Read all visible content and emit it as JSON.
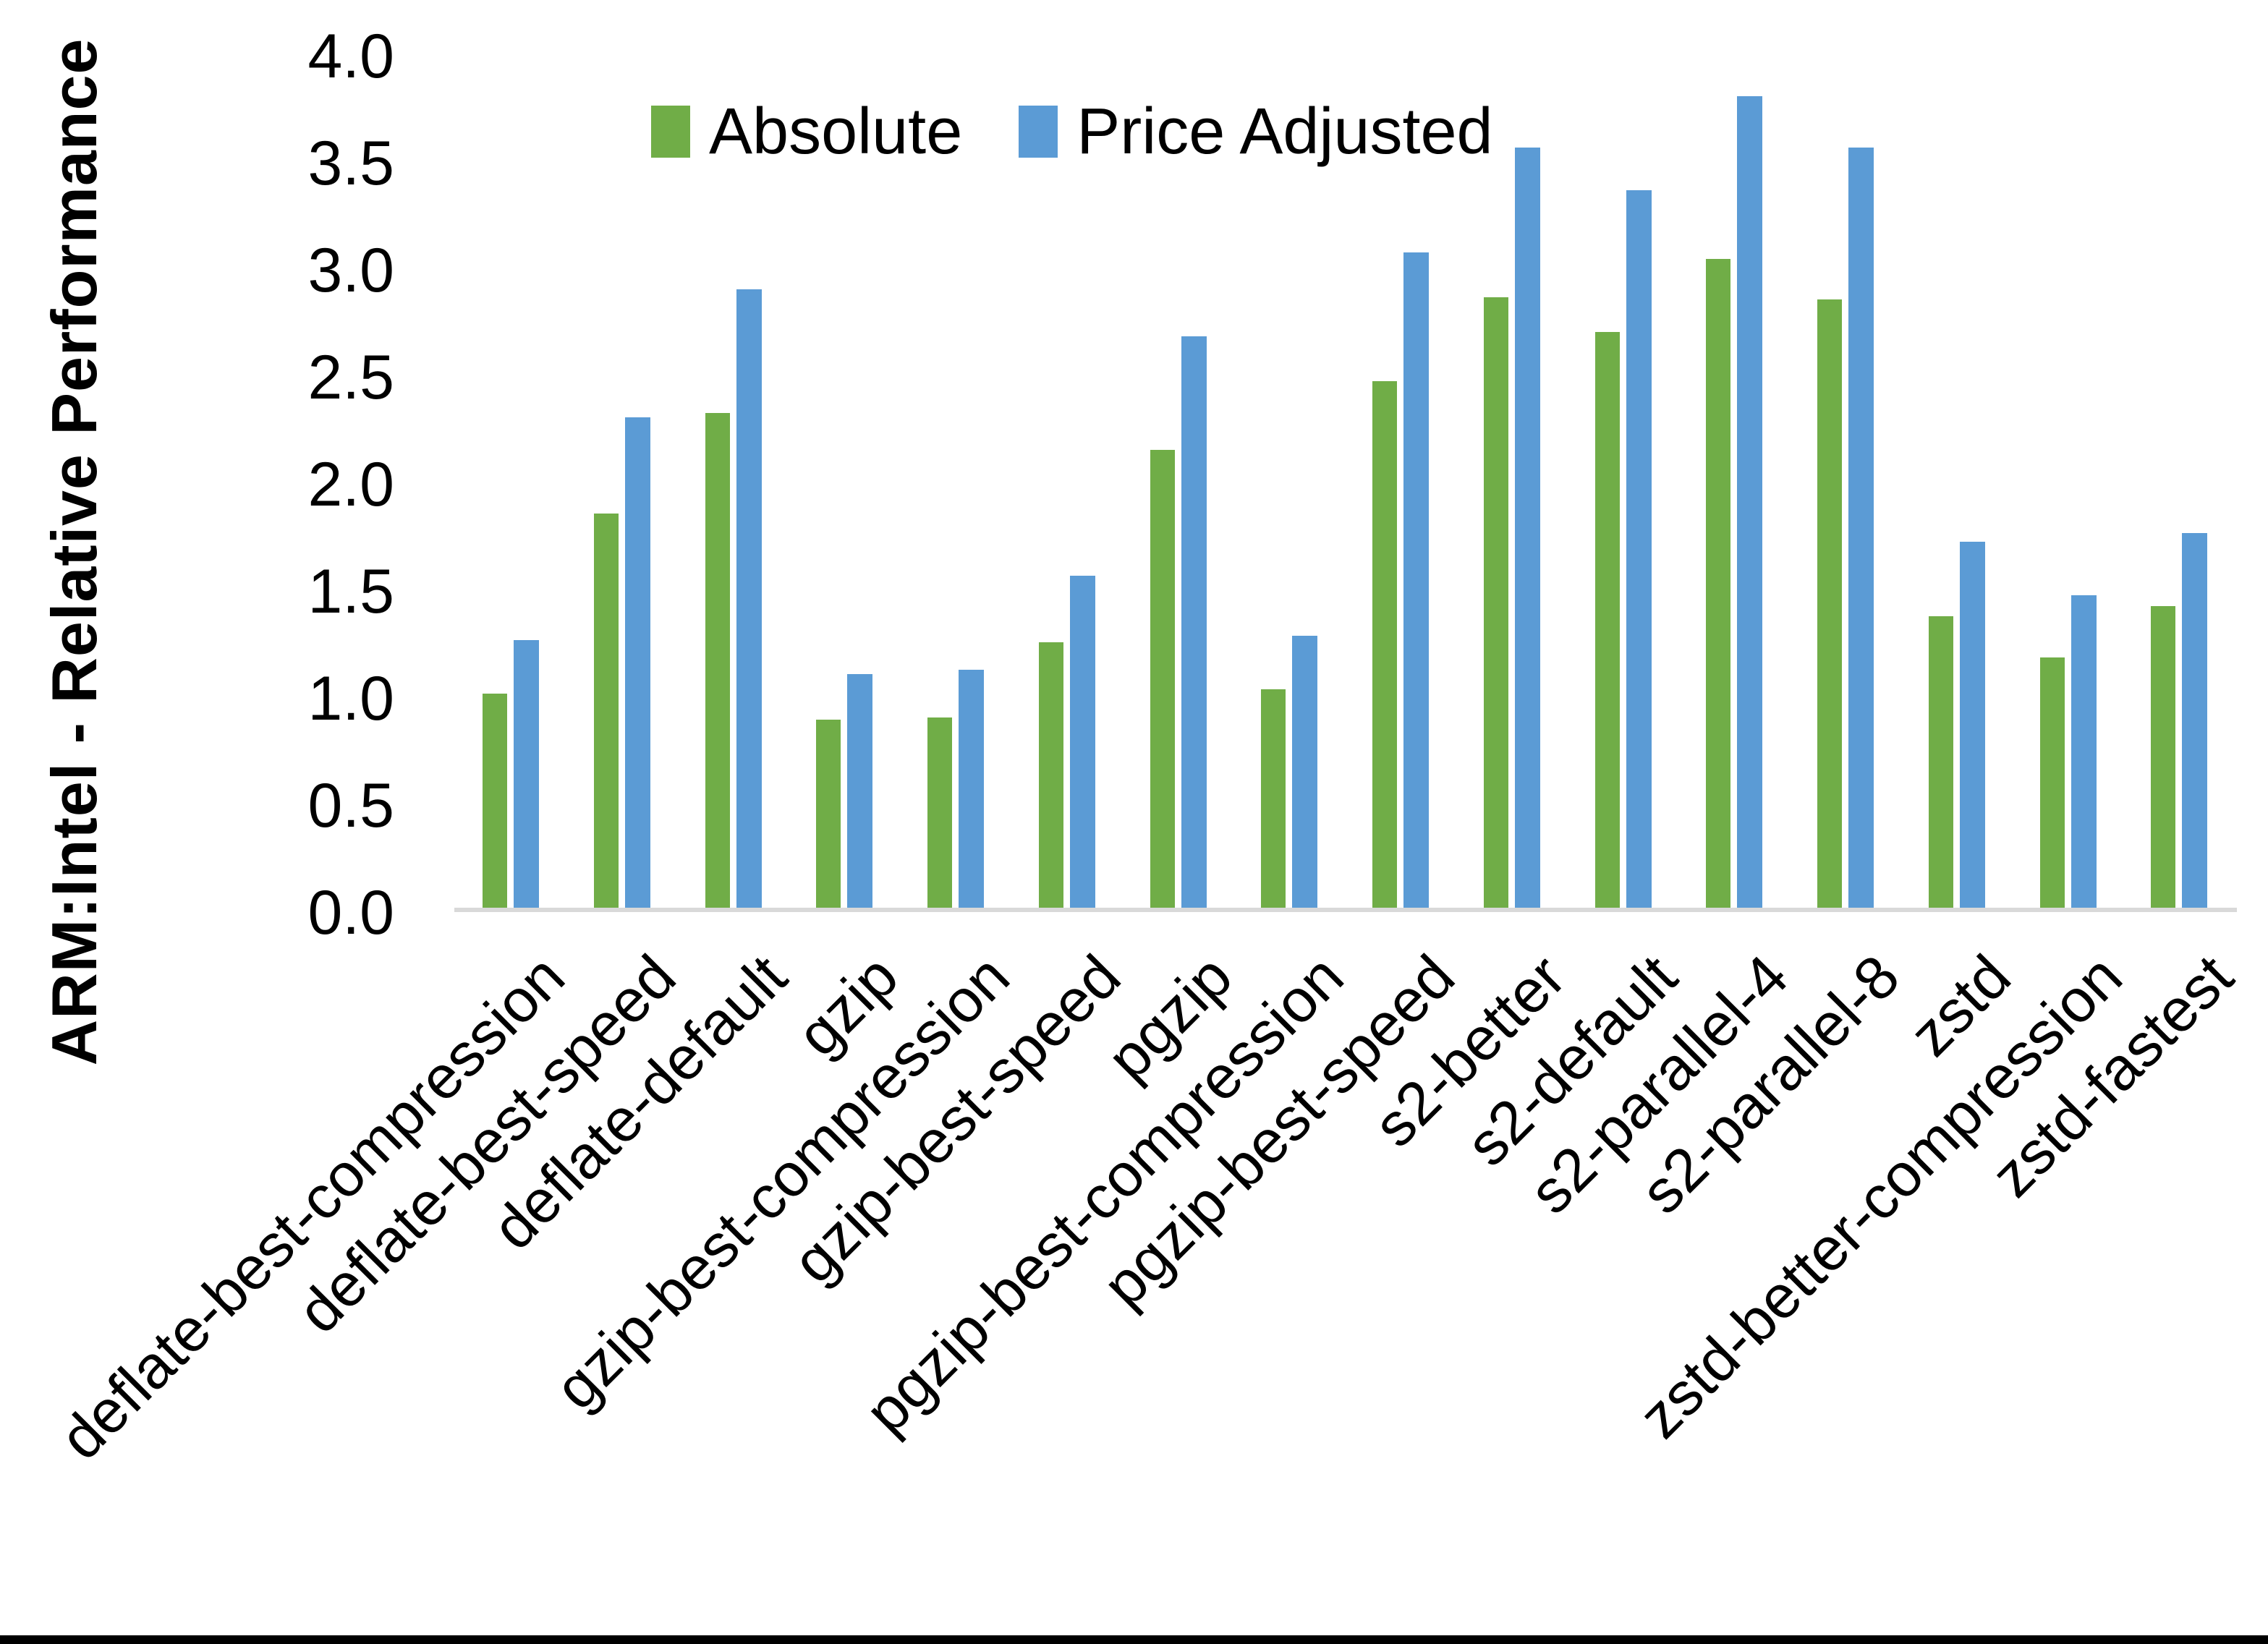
{
  "chart_data": {
    "type": "bar",
    "ylabel": "ARM:Intel - Relative Performance",
    "xlabel": "",
    "ylim": [
      0.0,
      4.0
    ],
    "ytick_step": 0.5,
    "y_ticks": [
      "4.0",
      "3.5",
      "3.0",
      "2.5",
      "2.0",
      "1.5",
      "1.0",
      "0.5",
      "0.0"
    ],
    "grid": false,
    "legend_position": "top-center",
    "categories": [
      "deflate-best-compression",
      "deflate-best-speed",
      "deflate-default",
      "gzip",
      "gzip-best-compression",
      "gzip-best-speed",
      "pgzip",
      "pgzip-best-compression",
      "pgzip-best-speed",
      "s2-better",
      "s2-default",
      "s2-parallel-4",
      "s2-parallel-8",
      "zstd",
      "zstd-better-compression",
      "zstd-fastest"
    ],
    "series": [
      {
        "name": "Absolute",
        "color": "#70AD47",
        "values": [
          1.01,
          1.85,
          2.32,
          0.89,
          0.9,
          1.25,
          2.15,
          1.03,
          2.47,
          2.86,
          2.7,
          3.04,
          2.85,
          1.37,
          1.18,
          1.42
        ]
      },
      {
        "name": "Price Adjusted",
        "color": "#5B9BD5",
        "values": [
          1.26,
          2.3,
          2.9,
          1.1,
          1.12,
          1.56,
          2.68,
          1.28,
          3.07,
          3.56,
          3.36,
          3.8,
          3.56,
          1.72,
          1.47,
          1.76
        ]
      }
    ]
  }
}
